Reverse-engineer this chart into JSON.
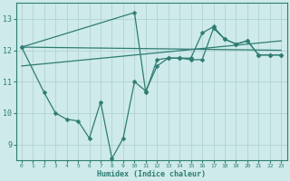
{
  "xlabel": "Humidex (Indice chaleur)",
  "xlim": [
    -0.5,
    23.5
  ],
  "ylim": [
    8.5,
    13.5
  ],
  "yticks": [
    9,
    10,
    11,
    12,
    13
  ],
  "xticks": [
    0,
    1,
    2,
    3,
    4,
    5,
    6,
    7,
    8,
    9,
    10,
    11,
    12,
    13,
    14,
    15,
    16,
    17,
    18,
    19,
    20,
    21,
    22,
    23
  ],
  "bg_color": "#ceeaea",
  "line_color": "#2e7d72",
  "grid_color": "#aecece",
  "line1_x": [
    0,
    2,
    3,
    4,
    5,
    6,
    7,
    8,
    9,
    10,
    11,
    12,
    13,
    14,
    15,
    16,
    17,
    18,
    19,
    20,
    21,
    22,
    23
  ],
  "line1_y": [
    12.1,
    10.65,
    10.0,
    9.8,
    9.75,
    9.2,
    10.35,
    8.55,
    9.2,
    11.0,
    10.7,
    11.5,
    11.75,
    11.75,
    11.7,
    11.7,
    12.7,
    12.35,
    12.2,
    12.3,
    11.85,
    11.85,
    11.85
  ],
  "line2_x": [
    0,
    10,
    11,
    12,
    13,
    14,
    15,
    16,
    17,
    18,
    19,
    20,
    21,
    22,
    23
  ],
  "line2_y": [
    12.1,
    13.2,
    10.65,
    11.7,
    11.75,
    11.75,
    11.75,
    12.55,
    12.75,
    12.35,
    12.2,
    12.3,
    11.85,
    11.85,
    11.85
  ],
  "line3_x": [
    0,
    23
  ],
  "line3_y": [
    12.1,
    12.0
  ],
  "line4_x": [
    0,
    23
  ],
  "line4_y": [
    11.5,
    12.3
  ]
}
